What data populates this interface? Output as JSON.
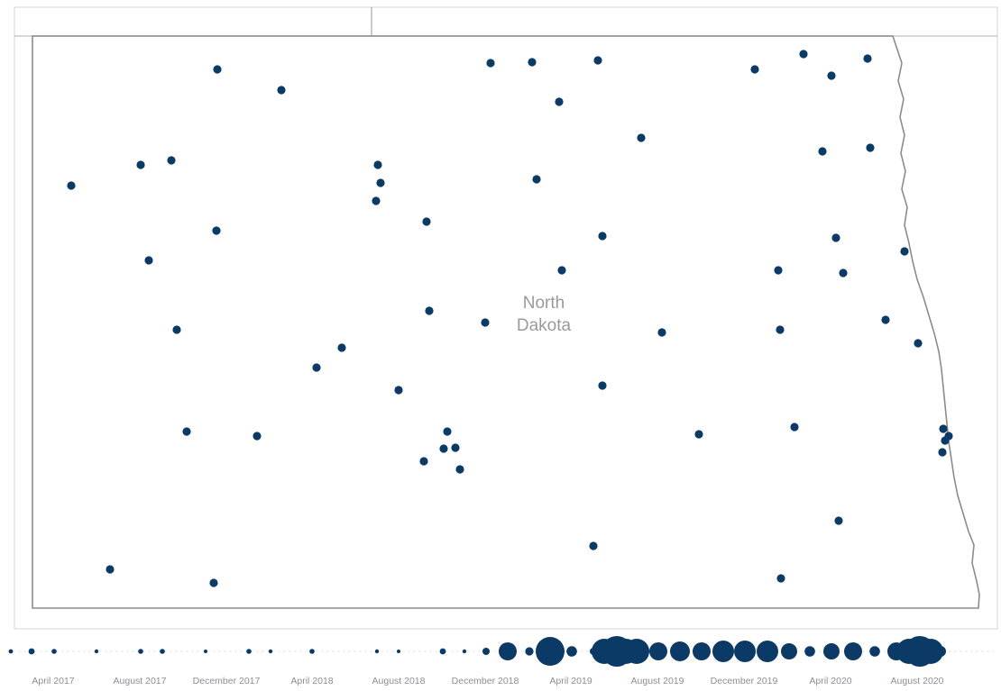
{
  "map": {
    "region_label_line1": "North",
    "region_label_line2": "Dakota",
    "marker_color": "#0b3a66",
    "border_color": "#8c8c8c",
    "marker_count": 66
  },
  "timeline": {
    "marker_color": "#0b3a66",
    "axis_labels": [
      "April 2017",
      "August 2017",
      "December 2017",
      "April 2018",
      "August 2018",
      "December 2018",
      "April 2019",
      "August 2019",
      "December 2019",
      "April 2020",
      "August 2020"
    ]
  }
}
